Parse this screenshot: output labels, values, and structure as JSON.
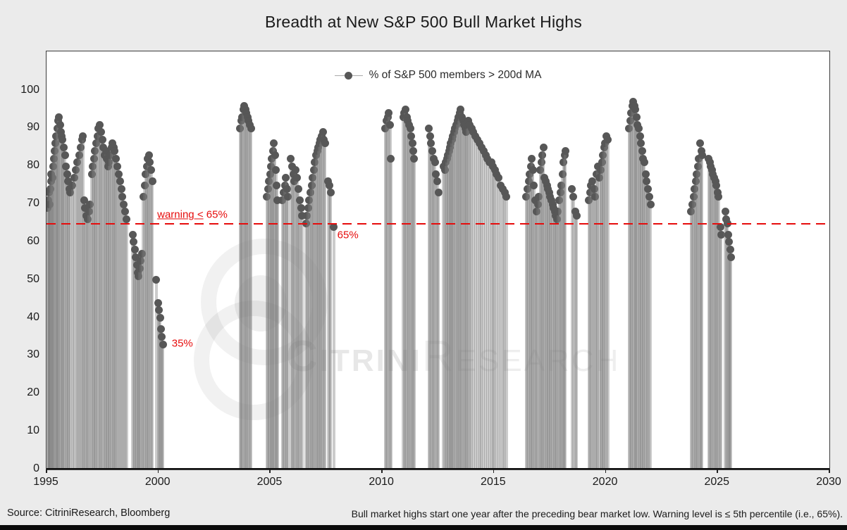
{
  "title": "Breadth at New S&P 500 Bull Market Highs",
  "legend": {
    "label": "% of S&P 500 members > 200d MA"
  },
  "labels": {
    "warning_underlined": "warning <",
    "warning_rest": " 65%",
    "level": "65%",
    "low": "35%"
  },
  "footer": {
    "source": "Source: CitriniResearch, Bloomberg",
    "note": "Bull market highs start one year after the preceding bear market low. Warning level is ≤ 5th percentile (i.e., 65%)."
  },
  "watermark": {
    "part1": "Citrini",
    "part2": "Research"
  },
  "colors": {
    "background": "#ebebeb",
    "plot_background": "#ffffff",
    "dot": "#575757",
    "stem": "#7a7a7a",
    "warning_red": "#e60c0c",
    "text": "#1a1a1a"
  },
  "chart_data": {
    "type": "scatter",
    "title": "Breadth at New S&P 500 Bull Market Highs",
    "series_name": "% of S&P 500 members > 200d MA",
    "marker_style": "lollipop (gray stem from 0 with dark gray dot)",
    "xlabel": "",
    "ylabel": "",
    "xlim": [
      1995,
      2030
    ],
    "ylim": [
      0,
      110
    ],
    "x_ticks": [
      1995,
      2000,
      2005,
      2010,
      2015,
      2020,
      2025,
      2030
    ],
    "y_ticks": [
      0,
      10,
      20,
      30,
      40,
      50,
      60,
      70,
      80,
      90,
      100
    ],
    "grid": false,
    "legend_position": "top-center-inside",
    "warning_level": 65,
    "annotations": [
      {
        "id": "warning",
        "text": "warning < 65%",
        "year": 1999.95,
        "value": 66.8
      },
      {
        "id": "level",
        "text": "65%",
        "year": 2008.0,
        "value": 61.8
      },
      {
        "id": "low",
        "text": "35%",
        "year": 2000.6,
        "value": 33.3
      }
    ],
    "points": [
      [
        1995.05,
        69
      ],
      [
        1995.08,
        71
      ],
      [
        1995.1,
        73
      ],
      [
        1995.13,
        70
      ],
      [
        1995.16,
        74
      ],
      [
        1995.19,
        76
      ],
      [
        1995.22,
        78
      ],
      [
        1995.26,
        77
      ],
      [
        1995.29,
        80
      ],
      [
        1995.32,
        82
      ],
      [
        1995.36,
        84
      ],
      [
        1995.4,
        86
      ],
      [
        1995.44,
        88
      ],
      [
        1995.48,
        90
      ],
      [
        1995.51,
        92
      ],
      [
        1995.55,
        93
      ],
      [
        1995.6,
        91
      ],
      [
        1995.64,
        89
      ],
      [
        1995.68,
        88
      ],
      [
        1995.72,
        87
      ],
      [
        1995.77,
        85
      ],
      [
        1995.82,
        83
      ],
      [
        1995.87,
        80
      ],
      [
        1995.92,
        78
      ],
      [
        1995.97,
        76
      ],
      [
        1996.02,
        74
      ],
      [
        1996.07,
        73
      ],
      [
        1996.15,
        75
      ],
      [
        1996.23,
        77
      ],
      [
        1996.31,
        79
      ],
      [
        1996.38,
        81
      ],
      [
        1996.45,
        83
      ],
      [
        1996.52,
        85
      ],
      [
        1996.58,
        87
      ],
      [
        1996.63,
        88
      ],
      [
        1996.68,
        71
      ],
      [
        1996.73,
        69
      ],
      [
        1996.78,
        67
      ],
      [
        1996.84,
        66
      ],
      [
        1996.9,
        68
      ],
      [
        1996.95,
        70
      ],
      [
        1997.02,
        78
      ],
      [
        1997.07,
        80
      ],
      [
        1997.12,
        82
      ],
      [
        1997.17,
        84
      ],
      [
        1997.22,
        86
      ],
      [
        1997.28,
        88
      ],
      [
        1997.33,
        90
      ],
      [
        1997.38,
        91
      ],
      [
        1997.44,
        89
      ],
      [
        1997.5,
        87
      ],
      [
        1997.55,
        85
      ],
      [
        1997.6,
        83
      ],
      [
        1997.65,
        84
      ],
      [
        1997.7,
        82
      ],
      [
        1997.75,
        80
      ],
      [
        1997.8,
        81
      ],
      [
        1997.85,
        83
      ],
      [
        1997.9,
        85
      ],
      [
        1997.95,
        86
      ],
      [
        1998.0,
        85
      ],
      [
        1998.05,
        84
      ],
      [
        1998.1,
        82
      ],
      [
        1998.16,
        80
      ],
      [
        1998.22,
        78
      ],
      [
        1998.28,
        76
      ],
      [
        1998.34,
        74
      ],
      [
        1998.4,
        72
      ],
      [
        1998.46,
        70
      ],
      [
        1998.52,
        68
      ],
      [
        1998.58,
        66
      ],
      [
        1998.85,
        62
      ],
      [
        1998.9,
        60
      ],
      [
        1998.95,
        58
      ],
      [
        1999.0,
        56
      ],
      [
        1999.04,
        54
      ],
      [
        1999.08,
        52
      ],
      [
        1999.12,
        51
      ],
      [
        1999.17,
        53
      ],
      [
        1999.22,
        55
      ],
      [
        1999.27,
        57
      ],
      [
        1999.33,
        72
      ],
      [
        1999.38,
        75
      ],
      [
        1999.43,
        78
      ],
      [
        1999.48,
        80
      ],
      [
        1999.53,
        82
      ],
      [
        1999.58,
        83
      ],
      [
        1999.63,
        81
      ],
      [
        1999.68,
        79
      ],
      [
        1999.73,
        76
      ],
      [
        1999.9,
        50
      ],
      [
        2000.0,
        44
      ],
      [
        2000.04,
        42
      ],
      [
        2000.08,
        40
      ],
      [
        2000.12,
        37
      ],
      [
        2000.16,
        35
      ],
      [
        2000.2,
        33
      ],
      [
        2003.65,
        90
      ],
      [
        2003.7,
        92
      ],
      [
        2003.74,
        93
      ],
      [
        2003.79,
        95
      ],
      [
        2003.84,
        96
      ],
      [
        2003.89,
        95
      ],
      [
        2003.94,
        94
      ],
      [
        2003.99,
        93
      ],
      [
        2004.04,
        92
      ],
      [
        2004.09,
        91
      ],
      [
        2004.14,
        90
      ],
      [
        2004.85,
        72
      ],
      [
        2004.9,
        74
      ],
      [
        2004.95,
        76
      ],
      [
        2005.0,
        78
      ],
      [
        2005.04,
        80
      ],
      [
        2005.08,
        82
      ],
      [
        2005.12,
        84
      ],
      [
        2005.16,
        86
      ],
      [
        2005.21,
        83
      ],
      [
        2005.26,
        79
      ],
      [
        2005.3,
        75
      ],
      [
        2005.33,
        71
      ],
      [
        2005.55,
        71
      ],
      [
        2005.6,
        73
      ],
      [
        2005.65,
        75
      ],
      [
        2005.7,
        77
      ],
      [
        2005.75,
        74
      ],
      [
        2005.8,
        72
      ],
      [
        2005.93,
        82
      ],
      [
        2005.98,
        80
      ],
      [
        2006.03,
        78
      ],
      [
        2006.08,
        76
      ],
      [
        2006.14,
        79
      ],
      [
        2006.2,
        77
      ],
      [
        2006.26,
        74
      ],
      [
        2006.32,
        71
      ],
      [
        2006.38,
        69
      ],
      [
        2006.43,
        67
      ],
      [
        2006.6,
        65
      ],
      [
        2006.65,
        67
      ],
      [
        2006.7,
        69
      ],
      [
        2006.75,
        71
      ],
      [
        2006.8,
        73
      ],
      [
        2006.85,
        75
      ],
      [
        2006.9,
        77
      ],
      [
        2006.95,
        79
      ],
      [
        2007.0,
        81
      ],
      [
        2007.05,
        83
      ],
      [
        2007.1,
        84
      ],
      [
        2007.15,
        85
      ],
      [
        2007.2,
        86
      ],
      [
        2007.25,
        87
      ],
      [
        2007.3,
        88
      ],
      [
        2007.35,
        89
      ],
      [
        2007.4,
        87
      ],
      [
        2007.45,
        86
      ],
      [
        2007.6,
        76
      ],
      [
        2007.65,
        75
      ],
      [
        2007.7,
        73
      ],
      [
        2007.85,
        64
      ],
      [
        2010.15,
        90
      ],
      [
        2010.2,
        92
      ],
      [
        2010.25,
        93
      ],
      [
        2010.3,
        94
      ],
      [
        2010.36,
        91
      ],
      [
        2010.4,
        82
      ],
      [
        2010.95,
        93
      ],
      [
        2011.0,
        94
      ],
      [
        2011.05,
        95
      ],
      [
        2011.1,
        93
      ],
      [
        2011.15,
        92
      ],
      [
        2011.2,
        91
      ],
      [
        2011.26,
        90
      ],
      [
        2011.31,
        88
      ],
      [
        2011.36,
        86
      ],
      [
        2011.4,
        84
      ],
      [
        2011.44,
        82
      ],
      [
        2012.1,
        90
      ],
      [
        2012.15,
        88
      ],
      [
        2012.2,
        86
      ],
      [
        2012.26,
        84
      ],
      [
        2012.31,
        82
      ],
      [
        2012.36,
        81
      ],
      [
        2012.42,
        78
      ],
      [
        2012.47,
        76
      ],
      [
        2012.52,
        73
      ],
      [
        2012.75,
        80
      ],
      [
        2012.8,
        79
      ],
      [
        2012.85,
        81
      ],
      [
        2012.9,
        82
      ],
      [
        2012.95,
        83
      ],
      [
        2013.0,
        84
      ],
      [
        2013.04,
        85
      ],
      [
        2013.08,
        86
      ],
      [
        2013.13,
        87
      ],
      [
        2013.17,
        88
      ],
      [
        2013.22,
        89
      ],
      [
        2013.27,
        90
      ],
      [
        2013.32,
        91
      ],
      [
        2013.37,
        92
      ],
      [
        2013.42,
        93
      ],
      [
        2013.47,
        94
      ],
      [
        2013.52,
        95
      ],
      [
        2013.57,
        93
      ],
      [
        2013.62,
        92
      ],
      [
        2013.67,
        91
      ],
      [
        2013.72,
        90
      ],
      [
        2013.77,
        89
      ],
      [
        2013.82,
        91
      ],
      [
        2013.87,
        92
      ],
      [
        2013.92,
        91
      ],
      [
        2014.0,
        90
      ],
      [
        2014.09,
        89
      ],
      [
        2014.18,
        88
      ],
      [
        2014.27,
        87
      ],
      [
        2014.36,
        86
      ],
      [
        2014.45,
        85
      ],
      [
        2014.54,
        84
      ],
      [
        2014.63,
        83
      ],
      [
        2014.72,
        82
      ],
      [
        2014.81,
        81
      ],
      [
        2014.9,
        81
      ],
      [
        2014.97,
        80
      ],
      [
        2015.05,
        79
      ],
      [
        2015.13,
        78
      ],
      [
        2015.22,
        77
      ],
      [
        2015.31,
        75
      ],
      [
        2015.4,
        74
      ],
      [
        2015.49,
        73
      ],
      [
        2015.57,
        72
      ],
      [
        2016.45,
        72
      ],
      [
        2016.5,
        74
      ],
      [
        2016.55,
        76
      ],
      [
        2016.6,
        78
      ],
      [
        2016.65,
        80
      ],
      [
        2016.7,
        82
      ],
      [
        2016.75,
        79
      ],
      [
        2016.8,
        75
      ],
      [
        2016.85,
        71
      ],
      [
        2016.9,
        68
      ],
      [
        2016.96,
        70
      ],
      [
        2017.02,
        72
      ],
      [
        2017.07,
        79
      ],
      [
        2017.12,
        81
      ],
      [
        2017.17,
        83
      ],
      [
        2017.22,
        85
      ],
      [
        2017.27,
        77
      ],
      [
        2017.32,
        76
      ],
      [
        2017.37,
        75
      ],
      [
        2017.42,
        74
      ],
      [
        2017.47,
        73
      ],
      [
        2017.52,
        72
      ],
      [
        2017.57,
        71
      ],
      [
        2017.62,
        70
      ],
      [
        2017.67,
        69
      ],
      [
        2017.72,
        68
      ],
      [
        2017.77,
        67
      ],
      [
        2017.82,
        66
      ],
      [
        2017.87,
        68
      ],
      [
        2017.92,
        71
      ],
      [
        2017.97,
        73
      ],
      [
        2018.02,
        75
      ],
      [
        2018.07,
        78
      ],
      [
        2018.12,
        81
      ],
      [
        2018.16,
        83
      ],
      [
        2018.2,
        84
      ],
      [
        2018.5,
        74
      ],
      [
        2018.55,
        72
      ],
      [
        2018.65,
        68
      ],
      [
        2018.7,
        67
      ],
      [
        2019.25,
        71
      ],
      [
        2019.3,
        73
      ],
      [
        2019.35,
        75
      ],
      [
        2019.4,
        76
      ],
      [
        2019.48,
        74
      ],
      [
        2019.53,
        72
      ],
      [
        2019.6,
        78
      ],
      [
        2019.65,
        80
      ],
      [
        2019.72,
        77
      ],
      [
        2019.78,
        79
      ],
      [
        2019.83,
        81
      ],
      [
        2019.88,
        83
      ],
      [
        2019.93,
        85
      ],
      [
        2019.98,
        86
      ],
      [
        2020.04,
        88
      ],
      [
        2020.1,
        87
      ],
      [
        2021.05,
        90
      ],
      [
        2021.1,
        92
      ],
      [
        2021.14,
        94
      ],
      [
        2021.19,
        96
      ],
      [
        2021.24,
        97
      ],
      [
        2021.29,
        96
      ],
      [
        2021.33,
        95
      ],
      [
        2021.38,
        93
      ],
      [
        2021.43,
        91
      ],
      [
        2021.48,
        90
      ],
      [
        2021.53,
        88
      ],
      [
        2021.58,
        86
      ],
      [
        2021.63,
        84
      ],
      [
        2021.68,
        82
      ],
      [
        2021.73,
        81
      ],
      [
        2021.78,
        78
      ],
      [
        2021.83,
        76
      ],
      [
        2021.88,
        74
      ],
      [
        2021.94,
        72
      ],
      [
        2022.0,
        70
      ],
      [
        2023.82,
        68
      ],
      [
        2023.87,
        70
      ],
      [
        2023.92,
        72
      ],
      [
        2023.97,
        74
      ],
      [
        2024.02,
        76
      ],
      [
        2024.07,
        78
      ],
      [
        2024.12,
        80
      ],
      [
        2024.17,
        82
      ],
      [
        2024.22,
        86
      ],
      [
        2024.27,
        84
      ],
      [
        2024.3,
        83
      ],
      [
        2024.6,
        82
      ],
      [
        2024.65,
        81
      ],
      [
        2024.7,
        80
      ],
      [
        2024.75,
        79
      ],
      [
        2024.8,
        78
      ],
      [
        2024.85,
        77
      ],
      [
        2024.9,
        76
      ],
      [
        2024.95,
        75
      ],
      [
        2025.0,
        73
      ],
      [
        2025.05,
        72
      ],
      [
        2025.12,
        64
      ],
      [
        2025.16,
        62
      ],
      [
        2025.35,
        68
      ],
      [
        2025.4,
        66
      ],
      [
        2025.44,
        65
      ],
      [
        2025.48,
        62
      ],
      [
        2025.52,
        60
      ],
      [
        2025.56,
        58
      ],
      [
        2025.6,
        56
      ]
    ]
  }
}
